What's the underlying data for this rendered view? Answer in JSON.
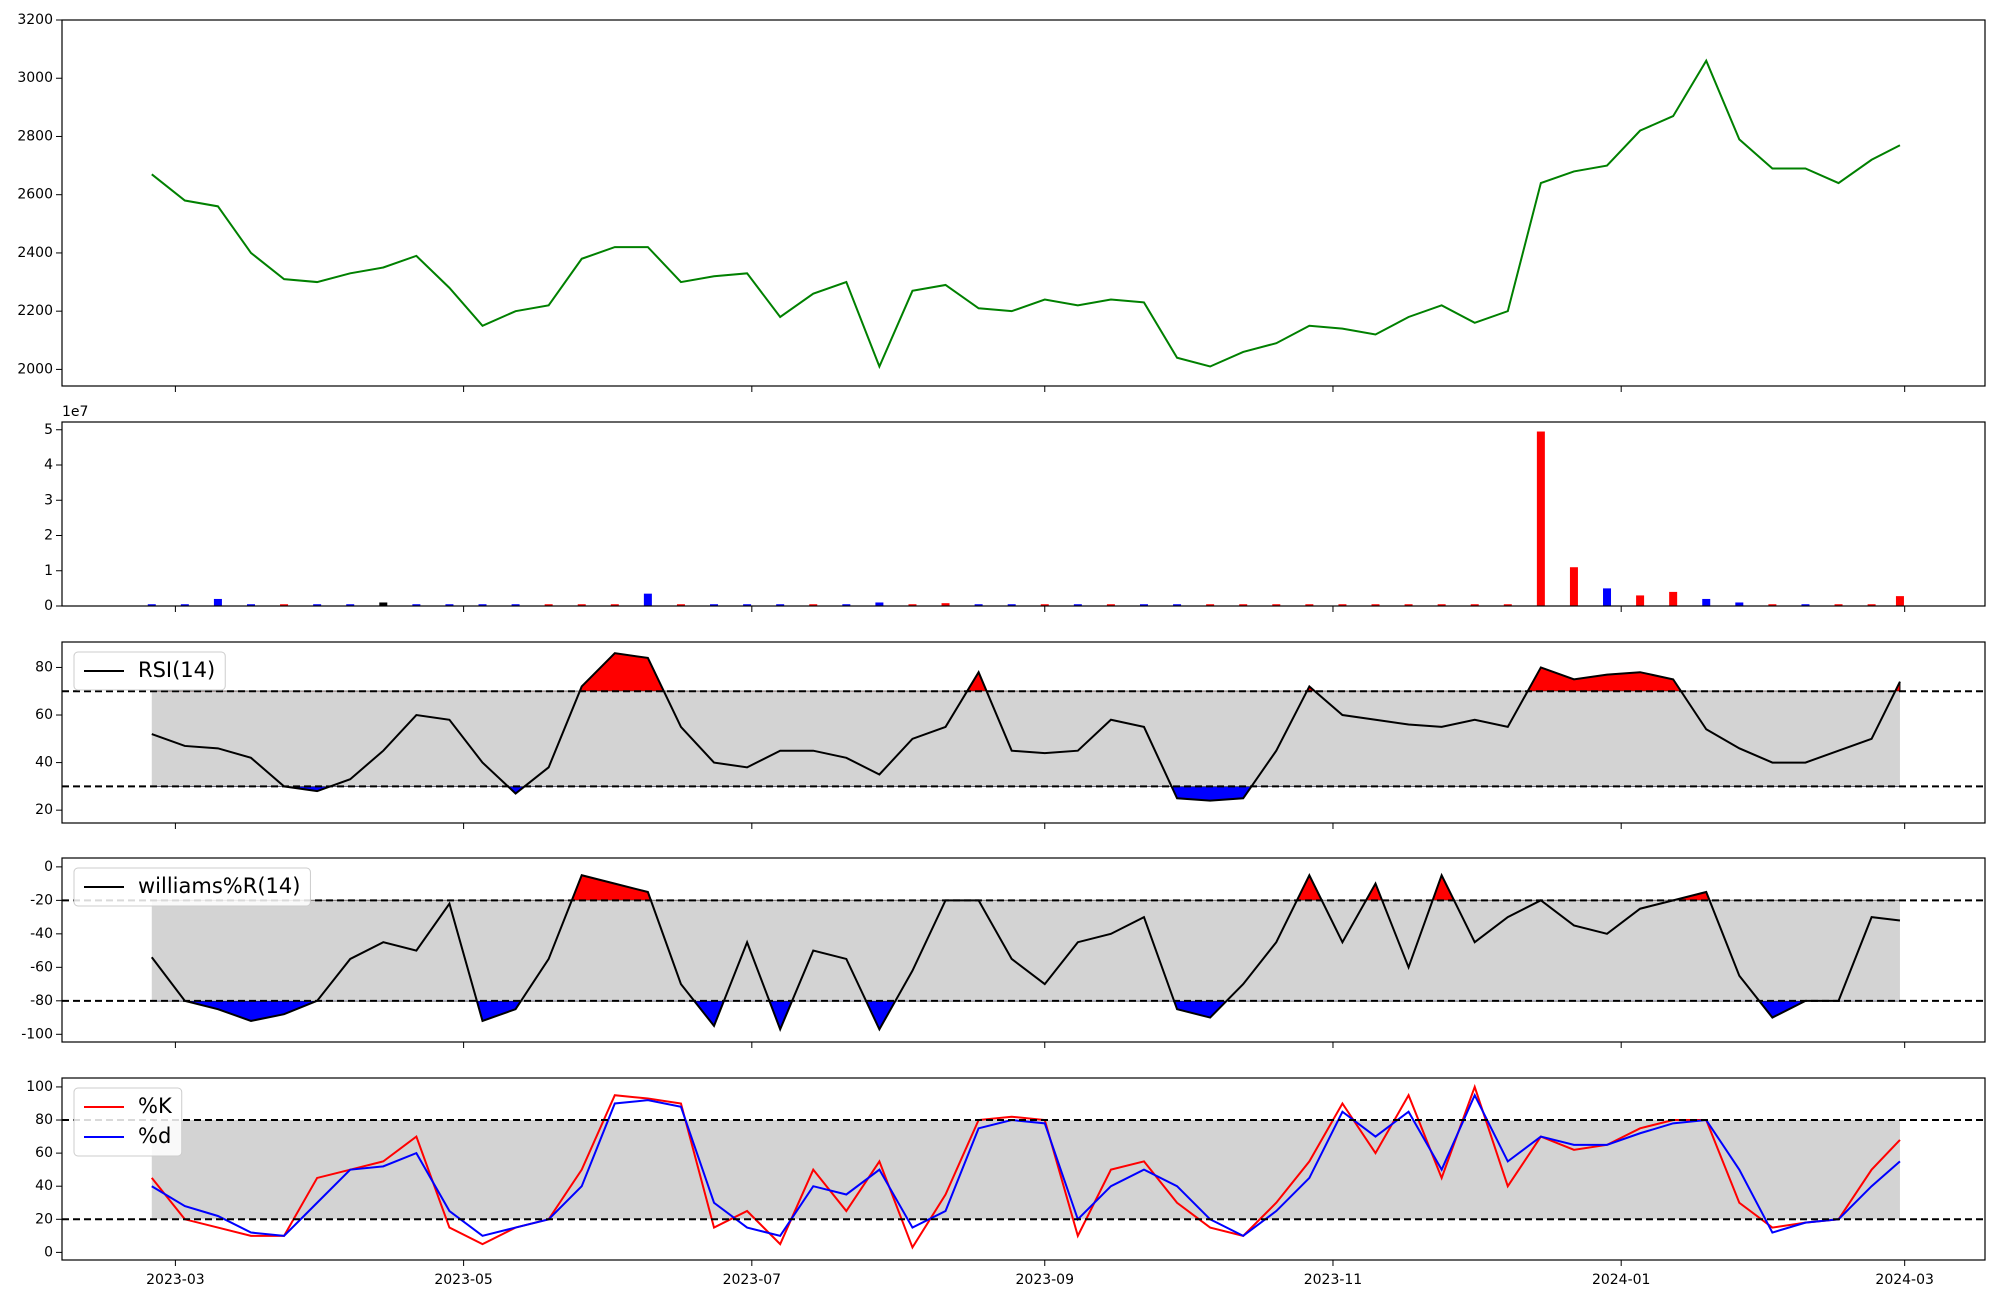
{
  "chart_data": [
    {
      "type": "line",
      "color": "#008000",
      "x": [
        "2023-02-24",
        "2023-03-03",
        "2023-03-10",
        "2023-03-17",
        "2023-03-24",
        "2023-03-31",
        "2023-04-07",
        "2023-04-14",
        "2023-04-21",
        "2023-04-28",
        "2023-05-05",
        "2023-05-12",
        "2023-05-19",
        "2023-05-26",
        "2023-06-02",
        "2023-06-09",
        "2023-06-16",
        "2023-06-23",
        "2023-06-30",
        "2023-07-07",
        "2023-07-14",
        "2023-07-21",
        "2023-07-28",
        "2023-08-04",
        "2023-08-11",
        "2023-08-18",
        "2023-08-25",
        "2023-09-01",
        "2023-09-08",
        "2023-09-15",
        "2023-09-22",
        "2023-09-29",
        "2023-10-06",
        "2023-10-13",
        "2023-10-20",
        "2023-10-27",
        "2023-11-03",
        "2023-11-10",
        "2023-11-17",
        "2023-11-24",
        "2023-12-01",
        "2023-12-08",
        "2023-12-15",
        "2023-12-22",
        "2023-12-29",
        "2024-01-05",
        "2024-01-12",
        "2024-01-19",
        "2024-01-26",
        "2024-02-02",
        "2024-02-09",
        "2024-02-16",
        "2024-02-23",
        "2024-02-29"
      ],
      "xlim": [
        "2023-02-05",
        "2024-03-18"
      ],
      "xticks": [
        "2023-03",
        "2023-05",
        "2023-07",
        "2023-09",
        "2023-11",
        "2024-01",
        "2024-03"
      ],
      "values": [
        2670,
        2580,
        2560,
        2400,
        2310,
        2300,
        2330,
        2350,
        2390,
        2280,
        2150,
        2200,
        2220,
        2380,
        2420,
        2420,
        2300,
        2320,
        2330,
        2180,
        2260,
        2300,
        2010,
        2270,
        2290,
        2210,
        2200,
        2240,
        2220,
        2240,
        2230,
        2040,
        2010,
        2060,
        2090,
        2150,
        2140,
        2120,
        2180,
        2220,
        2160,
        2200,
        2640,
        2680,
        2700,
        2820,
        2870,
        3060,
        2790,
        2690,
        2690,
        2640,
        2720,
        2770
      ],
      "ylim": [
        1943,
        3200
      ],
      "yticks": [
        2000,
        2200,
        2400,
        2600,
        2800,
        3000,
        3200
      ]
    },
    {
      "type": "bar",
      "offset_label": "1e7",
      "values": [
        0.05,
        0.05,
        0.2,
        0.05,
        0.05,
        0.05,
        0.05,
        0.1,
        0.05,
        0.05,
        0.05,
        0.05,
        0.05,
        0.05,
        0.05,
        0.35,
        0.05,
        0.05,
        0.05,
        0.05,
        0.05,
        0.05,
        0.1,
        0.05,
        0.08,
        0.05,
        0.05,
        0.05,
        0.05,
        0.05,
        0.05,
        0.05,
        0.05,
        0.05,
        0.05,
        0.05,
        0.05,
        0.05,
        0.05,
        0.05,
        0.05,
        0.05,
        4.95,
        1.1,
        0.5,
        0.3,
        0.4,
        0.2,
        0.1,
        0.05,
        0.05,
        0.05,
        0.05,
        0.28
      ],
      "colors": [
        "#0000ff",
        "#0000ff",
        "#0000ff",
        "#0000ff",
        "#ff0000",
        "#0000ff",
        "#0000ff",
        "#000000",
        "#0000ff",
        "#0000ff",
        "#0000ff",
        "#0000ff",
        "#ff0000",
        "#ff0000",
        "#ff0000",
        "#0000ff",
        "#ff0000",
        "#0000ff",
        "#0000ff",
        "#0000ff",
        "#ff0000",
        "#0000ff",
        "#0000ff",
        "#ff0000",
        "#ff0000",
        "#0000ff",
        "#0000ff",
        "#ff0000",
        "#0000ff",
        "#ff0000",
        "#0000ff",
        "#0000ff",
        "#ff0000",
        "#ff0000",
        "#ff0000",
        "#ff0000",
        "#ff0000",
        "#ff0000",
        "#ff0000",
        "#ff0000",
        "#ff0000",
        "#ff0000",
        "#ff0000",
        "#ff0000",
        "#0000ff",
        "#ff0000",
        "#ff0000",
        "#0000ff",
        "#0000ff",
        "#ff0000",
        "#0000ff",
        "#ff0000",
        "#ff0000",
        "#ff0000"
      ],
      "ylim": [
        0,
        5.22
      ],
      "yticks": [
        0,
        1,
        2,
        3,
        4,
        5
      ]
    },
    {
      "type": "line",
      "series": [
        {
          "name": "RSI(14)",
          "color": "#000000",
          "values": [
            52,
            47,
            46,
            42,
            30,
            28,
            33,
            45,
            60,
            58,
            40,
            27,
            38,
            72,
            86,
            84,
            55,
            40,
            38,
            45,
            45,
            42,
            35,
            50,
            55,
            78,
            45,
            44,
            45,
            58,
            55,
            25,
            24,
            25,
            45,
            72,
            60,
            58,
            56,
            55,
            58,
            55,
            80,
            75,
            77,
            78,
            75,
            54,
            46,
            40,
            40,
            45,
            50,
            74
          ]
        }
      ],
      "thresholds": [
        70,
        30
      ],
      "band_color": "#d3d3d3",
      "above_color": "#ff0000",
      "below_color": "#0000ff",
      "ylim": [
        14.6,
        90.7
      ],
      "yticks": [
        20,
        40,
        60,
        80
      ]
    },
    {
      "type": "line",
      "series": [
        {
          "name": "williams%R(14)",
          "color": "#000000",
          "values": [
            -54,
            -80,
            -85,
            -92,
            -88,
            -80,
            -55,
            -45,
            -50,
            -22,
            -92,
            -85,
            -55,
            -5,
            -10,
            -15,
            -70,
            -95,
            -45,
            -97,
            -50,
            -55,
            -97,
            -62,
            -20,
            -20,
            -55,
            -70,
            -45,
            -40,
            -30,
            -85,
            -90,
            -70,
            -45,
            -5,
            -45,
            -10,
            -60,
            -5,
            -45,
            -30,
            -20,
            -35,
            -40,
            -25,
            -20,
            -15,
            -65,
            -90,
            -80,
            -80,
            -30,
            -32
          ]
        }
      ],
      "thresholds": [
        -20,
        -80
      ],
      "band_color": "#d3d3d3",
      "above_color": "#ff0000",
      "below_color": "#0000ff",
      "ylim": [
        -104.6,
        5.3
      ],
      "yticks": [
        0,
        -20,
        -40,
        -60,
        -80,
        -100
      ]
    },
    {
      "type": "line",
      "series": [
        {
          "name": "%K",
          "color": "#ff0000",
          "values": [
            45,
            20,
            15,
            10,
            10,
            45,
            50,
            55,
            70,
            15,
            5,
            15,
            20,
            50,
            95,
            93,
            90,
            15,
            25,
            5,
            50,
            25,
            55,
            3,
            35,
            80,
            82,
            80,
            10,
            50,
            55,
            30,
            15,
            10,
            30,
            55,
            90,
            60,
            95,
            45,
            100,
            40,
            70,
            62,
            65,
            75,
            80,
            80,
            30,
            15,
            18,
            20,
            50,
            68
          ]
        },
        {
          "name": "%d",
          "color": "#0000ff",
          "values": [
            40,
            28,
            22,
            12,
            10,
            30,
            50,
            52,
            60,
            25,
            10,
            15,
            20,
            40,
            90,
            92,
            88,
            30,
            15,
            10,
            40,
            35,
            50,
            15,
            25,
            75,
            80,
            78,
            20,
            40,
            50,
            40,
            20,
            10,
            25,
            45,
            85,
            70,
            85,
            50,
            95,
            55,
            70,
            65,
            65,
            72,
            78,
            80,
            50,
            12,
            18,
            20,
            40,
            55
          ]
        }
      ],
      "thresholds": [
        80,
        20
      ],
      "band_color": "#d3d3d3",
      "ylim": [
        -4.6,
        105.4
      ],
      "yticks": [
        0,
        20,
        40,
        60,
        80,
        100
      ]
    }
  ]
}
